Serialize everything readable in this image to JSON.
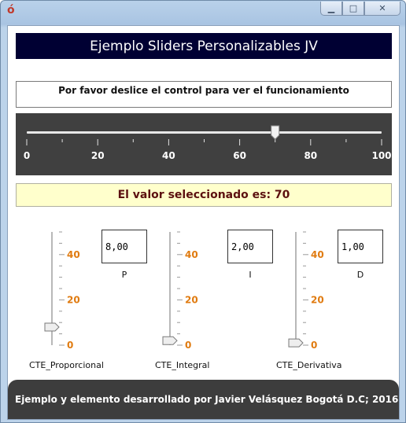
{
  "window": {
    "app_icon": "java-icon",
    "minimize": "▁",
    "maximize": "□",
    "close": "✕"
  },
  "header": {
    "title": "Ejemplo Sliders Personalizables JV"
  },
  "instructions": "Por favor deslice el control para ver el funcionamiento",
  "main_slider": {
    "min": 0,
    "max": 100,
    "value": 70,
    "labels": [
      "0",
      "20",
      "40",
      "60",
      "80",
      "100"
    ]
  },
  "result_text": "El valor seleccionado es: 70",
  "vertical_sliders": [
    {
      "caption": "CTE_Proporcional",
      "value_text": "8,00",
      "letter": "P",
      "value": 8
    },
    {
      "caption": "CTE_Integral",
      "value_text": "2,00",
      "letter": "I",
      "value": 2
    },
    {
      "caption": "CTE_Derivativa",
      "value_text": "1,00",
      "letter": "D",
      "value": 1
    }
  ],
  "vertical_scale_labels": [
    "40",
    "20",
    "0"
  ],
  "footer": "Ejemplo y elemento desarrollado por Javier Velásquez Bogotá D.C; 2016"
}
